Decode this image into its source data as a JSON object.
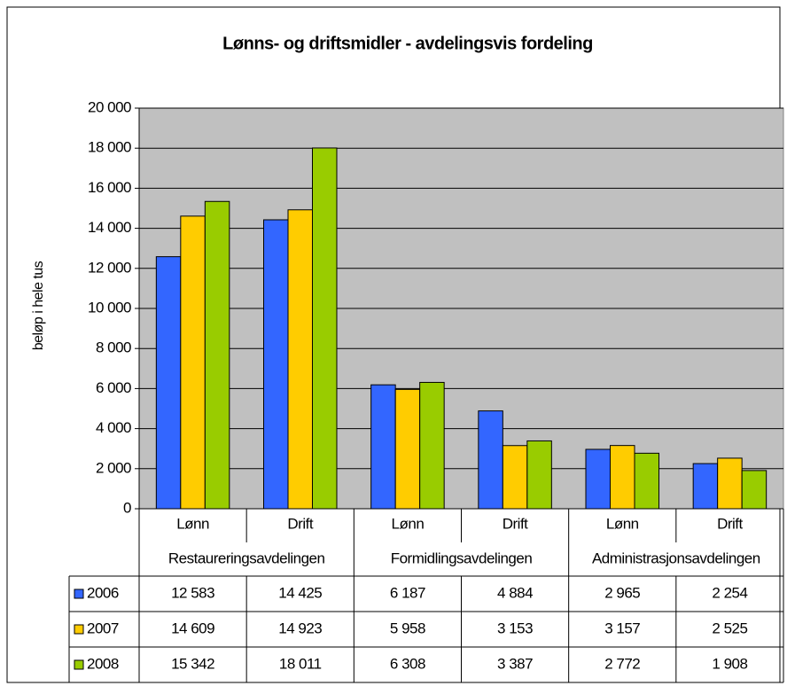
{
  "chart_data": {
    "type": "bar",
    "title": "Lønns- og driftsmidler - avdelingsvis fordeling",
    "y_label": "beløp i hele tus",
    "categories": [
      "Lønn",
      "Drift",
      "Lønn",
      "Drift",
      "Lønn",
      "Drift"
    ],
    "category_groups": [
      "Restaureringsavdelingen",
      "Formidlingsavdelingen",
      "Administrasjonsavdelingen"
    ],
    "series": [
      {
        "name": "2006",
        "color": "#3366ff",
        "values": [
          12583,
          14425,
          6187,
          4884,
          2965,
          2254
        ],
        "value_labels": [
          "12 583",
          "14 425",
          "6 187",
          "4 884",
          "2 965",
          "2 254"
        ]
      },
      {
        "name": "2007",
        "color": "#ffcc00",
        "values": [
          14609,
          14923,
          5958,
          3153,
          3157,
          2525
        ],
        "value_labels": [
          "14 609",
          "14 923",
          "5 958",
          "3 153",
          "3 157",
          "2 525"
        ]
      },
      {
        "name": "2008",
        "color": "#99cc00",
        "values": [
          15342,
          18011,
          6308,
          3387,
          2772,
          1908
        ],
        "value_labels": [
          "15 342",
          "18 011",
          "6 308",
          "3 387",
          "2 772",
          "1 908"
        ]
      }
    ],
    "ylim": [
      0,
      20000
    ],
    "yticks": [
      0,
      {
        "value": 2000,
        "label": "2 000"
      },
      {
        "value": 4000,
        "label": "4 000"
      },
      {
        "value": 6000,
        "label": "6 000"
      },
      {
        "value": 8000,
        "label": "8 000"
      },
      {
        "value": 10000,
        "label": "10 000"
      },
      {
        "value": 12000,
        "label": "12 000"
      },
      {
        "value": 14000,
        "label": "14 000"
      },
      {
        "value": 16000,
        "label": "16 000"
      },
      {
        "value": 18000,
        "label": "18 000"
      },
      {
        "value": 20000,
        "label": "20 000"
      }
    ],
    "grid": true,
    "plot_background": "#c0c0c0"
  }
}
